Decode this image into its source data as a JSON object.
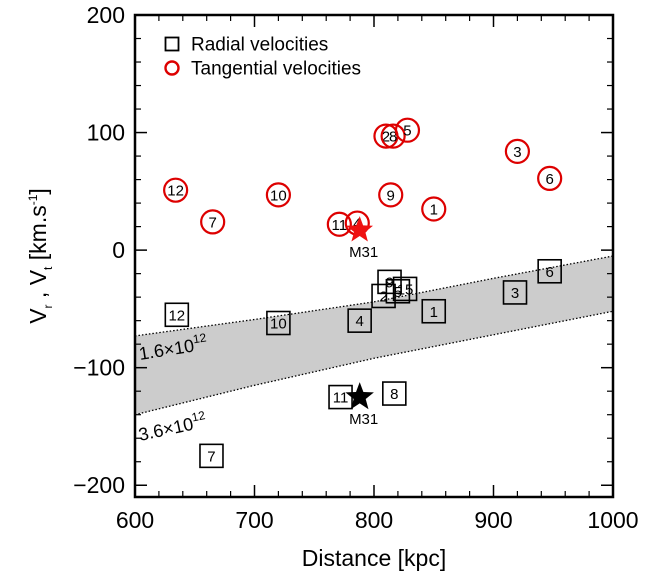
{
  "chart_data": {
    "type": "scatter",
    "xlabel": "Distance [kpc]",
    "ylabel": {
      "v": "V",
      "r": "r",
      "sep": " ,  ",
      "t": "t",
      "unit": " [km.s",
      "exp": "-1",
      "close": "]"
    },
    "xlim": [
      600,
      1000
    ],
    "ylim": [
      -210,
      200
    ],
    "x_ticks": [
      600,
      700,
      800,
      900,
      1000
    ],
    "y_ticks": [
      -200,
      -100,
      0,
      100,
      200
    ],
    "x_tick_labels": [
      "600",
      "700",
      "800",
      "900",
      "1000"
    ],
    "y_tick_labels": [
      "−200",
      "−100",
      "0",
      "100",
      "200"
    ],
    "legend": {
      "placement": "top-left",
      "entries": [
        {
          "label": "Radial velocities",
          "marker": "square",
          "color": "#000000"
        },
        {
          "label": "Tangential velocities",
          "marker": "circle",
          "color": "#dd0000"
        }
      ]
    },
    "band": {
      "color": "#cccccc",
      "upper": {
        "label_base": "1.6×10",
        "label_exp": "12",
        "points": [
          [
            600,
            -73
          ],
          [
            700,
            -59
          ],
          [
            800,
            -44
          ],
          [
            900,
            -24
          ],
          [
            1000,
            -5
          ]
        ]
      },
      "lower": {
        "label_base": "3.6×10",
        "label_exp": "12",
        "points": [
          [
            600,
            -140
          ],
          [
            700,
            -115
          ],
          [
            800,
            -92
          ],
          [
            900,
            -72
          ],
          [
            1000,
            -52
          ]
        ]
      }
    },
    "series": [
      {
        "name": "Radial velocities",
        "marker": "square",
        "color": "#000000",
        "points": [
          {
            "label": "12",
            "x": 635,
            "y": -55
          },
          {
            "label": "10",
            "x": 720,
            "y": -62
          },
          {
            "label": "4",
            "x": 788,
            "y": -60
          },
          {
            "label": "2",
            "x": 808,
            "y": -39
          },
          {
            "label": "9",
            "x": 813,
            "y": -27
          },
          {
            "label": "5",
            "x": 820,
            "y": -35
          },
          {
            "label": "15",
            "x": 826,
            "y": -33
          },
          {
            "label": "1",
            "x": 850,
            "y": -52
          },
          {
            "label": "3",
            "x": 918,
            "y": -36
          },
          {
            "label": "6",
            "x": 947,
            "y": -18
          },
          {
            "label": "11",
            "x": 772,
            "y": -125
          },
          {
            "label": "8",
            "x": 817,
            "y": -122
          },
          {
            "label": "7",
            "x": 664,
            "y": -175
          }
        ]
      },
      {
        "name": "Tangential velocities",
        "marker": "circle",
        "color": "#dd0000",
        "points": [
          {
            "label": "12",
            "x": 634,
            "y": 51
          },
          {
            "label": "7",
            "x": 665,
            "y": 24
          },
          {
            "label": "10",
            "x": 720,
            "y": 47
          },
          {
            "label": "11",
            "x": 771,
            "y": 22
          },
          {
            "label": "4",
            "x": 786,
            "y": 23
          },
          {
            "label": "9",
            "x": 814,
            "y": 47
          },
          {
            "label": "1",
            "x": 850,
            "y": 35
          },
          {
            "label": "2",
            "x": 810,
            "y": 97
          },
          {
            "label": "8",
            "x": 816,
            "y": 97
          },
          {
            "label": "5",
            "x": 828,
            "y": 102
          },
          {
            "label": "3",
            "x": 920,
            "y": 84
          },
          {
            "label": "6",
            "x": 947,
            "y": 61
          }
        ]
      }
    ],
    "m31": {
      "label": "M31",
      "x": 788,
      "radial_y": -125,
      "tangential_y": 17,
      "radial_color": "#000000",
      "tangential_color": "#ee1111"
    }
  }
}
